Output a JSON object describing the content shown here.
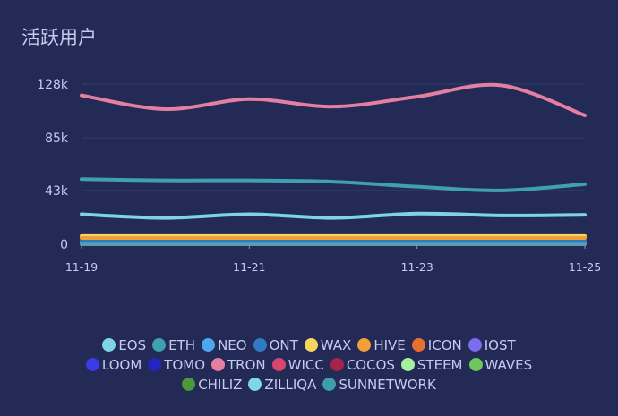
{
  "chart_data": {
    "type": "line",
    "title": "活跃用户",
    "ytick_labels": [
      "0",
      "43k",
      "85k",
      "128k"
    ],
    "yticks": [
      0,
      43000,
      85000,
      128000
    ],
    "ylim": [
      0,
      128000
    ],
    "x": [
      "11-19",
      "11-20",
      "11-21",
      "11-22",
      "11-23",
      "11-24",
      "11-25"
    ],
    "xtick_labels": [
      "11-19",
      "11-21",
      "11-23",
      "11-25"
    ],
    "grid": true,
    "legend_position": "bottom",
    "series": [
      {
        "name": "EOS",
        "color": "#7fd3e6",
        "values": [
          24000,
          21000,
          24000,
          21000,
          24500,
          23000,
          23500
        ]
      },
      {
        "name": "ETH",
        "color": "#3ea0b0",
        "values": [
          52000,
          51000,
          51000,
          50000,
          46000,
          43000,
          48000
        ]
      },
      {
        "name": "NEO",
        "color": "#4da6f0",
        "values": [
          1500,
          1500,
          1500,
          1500,
          1500,
          1500,
          1500
        ]
      },
      {
        "name": "ONT",
        "color": "#2f7ac6",
        "values": [
          2500,
          2500,
          2500,
          2500,
          2500,
          2500,
          2500
        ]
      },
      {
        "name": "WAX",
        "color": "#f6d55c",
        "values": [
          6500,
          6500,
          6500,
          6500,
          6500,
          6500,
          6500
        ]
      },
      {
        "name": "HIVE",
        "color": "#f29f3a",
        "values": [
          5000,
          5000,
          5000,
          5000,
          5000,
          5000,
          5000
        ]
      },
      {
        "name": "ICON",
        "color": "#e8702e",
        "values": [
          500,
          500,
          500,
          500,
          500,
          500,
          500
        ]
      },
      {
        "name": "IOST",
        "color": "#7b6cf0",
        "values": [
          500,
          500,
          500,
          500,
          500,
          500,
          500
        ]
      },
      {
        "name": "LOOM",
        "color": "#3a3ae6",
        "values": [
          300,
          300,
          300,
          300,
          300,
          300,
          300
        ]
      },
      {
        "name": "TOMO",
        "color": "#2424c0",
        "values": [
          300,
          300,
          300,
          300,
          300,
          300,
          300
        ]
      },
      {
        "name": "TRON",
        "color": "#e57fa2",
        "values": [
          119000,
          108000,
          116000,
          110000,
          118000,
          127000,
          103000
        ]
      },
      {
        "name": "WICC",
        "color": "#d9456e",
        "values": [
          200,
          200,
          200,
          200,
          200,
          200,
          200
        ]
      },
      {
        "name": "COCOS",
        "color": "#a8234a",
        "values": [
          200,
          200,
          200,
          200,
          200,
          200,
          200
        ]
      },
      {
        "name": "STEEM",
        "color": "#a6f0a0",
        "values": [
          300,
          300,
          300,
          300,
          300,
          300,
          300
        ]
      },
      {
        "name": "WAVES",
        "color": "#6cc85a",
        "values": [
          200,
          200,
          200,
          200,
          200,
          200,
          200
        ]
      },
      {
        "name": "CHILIZ",
        "color": "#4a9a3a",
        "values": [
          200,
          200,
          200,
          200,
          200,
          200,
          200
        ]
      },
      {
        "name": "ZILLIQA",
        "color": "#7fd8e0",
        "values": [
          200,
          200,
          200,
          200,
          200,
          200,
          200
        ]
      },
      {
        "name": "SUNNETWORK",
        "color": "#3e9faa",
        "values": [
          200,
          200,
          200,
          200,
          200,
          200,
          200
        ]
      }
    ]
  }
}
